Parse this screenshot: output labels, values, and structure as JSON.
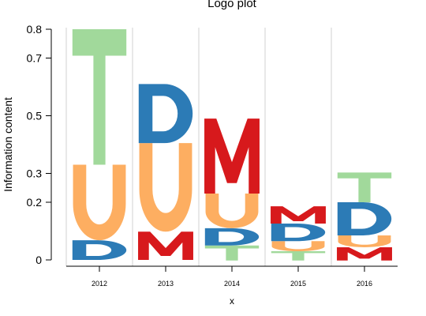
{
  "chart_data": {
    "type": "logo",
    "title": "Logo plot",
    "xlabel": "x",
    "ylabel": "Information content",
    "ylim": [
      0,
      0.8
    ],
    "y_ticks": [
      {
        "value": 0.8,
        "label": "0.8"
      },
      {
        "value": 0.7,
        "label": "0.7"
      },
      {
        "value": 0.5,
        "label": "0.5"
      },
      {
        "value": 0.3,
        "label": "0.3"
      },
      {
        "value": 0.2,
        "label": "0.2"
      },
      {
        "value": 0.0,
        "label": "0"
      }
    ],
    "grid": "vertical",
    "letter_colors": {
      "T": "#a1d99b",
      "U": "#fdae61",
      "D": "#2c7bb6",
      "M": "#d7191c"
    },
    "positions": [
      {
        "x": "2012",
        "letters": [
          {
            "letter": "D",
            "bottom": 0.0,
            "top": 0.068
          },
          {
            "letter": "U",
            "bottom": 0.068,
            "top": 0.33
          },
          {
            "letter": "T",
            "bottom": 0.33,
            "top": 0.8
          }
        ]
      },
      {
        "x": "2013",
        "letters": [
          {
            "letter": "M",
            "bottom": 0.0,
            "top": 0.098
          },
          {
            "letter": "U",
            "bottom": 0.098,
            "top": 0.405
          },
          {
            "letter": "D",
            "bottom": 0.405,
            "top": 0.61
          }
        ]
      },
      {
        "x": "2014",
        "letters": [
          {
            "letter": "T",
            "bottom": -0.002,
            "top": 0.05
          },
          {
            "letter": "D",
            "bottom": 0.05,
            "top": 0.11
          },
          {
            "letter": "U",
            "bottom": 0.11,
            "top": 0.23
          },
          {
            "letter": "M",
            "bottom": 0.23,
            "top": 0.49
          }
        ]
      },
      {
        "x": "2015",
        "letters": [
          {
            "letter": "T",
            "bottom": -0.002,
            "top": 0.03
          },
          {
            "letter": "U",
            "bottom": 0.03,
            "top": 0.065
          },
          {
            "letter": "D",
            "bottom": 0.065,
            "top": 0.126
          },
          {
            "letter": "M",
            "bottom": 0.126,
            "top": 0.186
          }
        ]
      },
      {
        "x": "2016",
        "letters": [
          {
            "letter": "M",
            "bottom": -0.002,
            "top": 0.044
          },
          {
            "letter": "U",
            "bottom": 0.044,
            "top": 0.085
          },
          {
            "letter": "D",
            "bottom": 0.085,
            "top": 0.2
          },
          {
            "letter": "T",
            "bottom": 0.2,
            "top": 0.303
          }
        ]
      }
    ]
  }
}
